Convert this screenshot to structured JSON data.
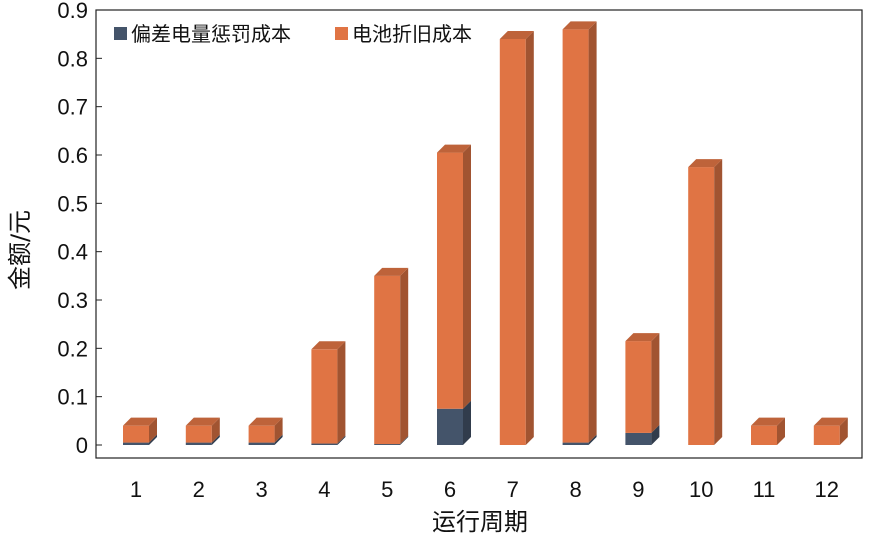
{
  "chart_data": {
    "type": "bar",
    "stacked": true,
    "categories": [
      "1",
      "2",
      "3",
      "4",
      "5",
      "6",
      "7",
      "8",
      "9",
      "10",
      "11",
      "12"
    ],
    "series": [
      {
        "name": "偏差电量惩罚成本",
        "color": "#44546A",
        "values": [
          0.005,
          0.005,
          0.005,
          0.003,
          0.002,
          0.075,
          0,
          0.005,
          0.025,
          0,
          0,
          0
        ]
      },
      {
        "name": "电池折旧成本",
        "color": "#E07444",
        "values": [
          0.035,
          0.035,
          0.035,
          0.195,
          0.348,
          0.53,
          0.84,
          0.855,
          0.19,
          0.575,
          0.04,
          0.04
        ]
      }
    ],
    "ylim": [
      0,
      0.9
    ],
    "yticks": [
      "0",
      "0.1",
      "0.2",
      "0.3",
      "0.4",
      "0.5",
      "0.6",
      "0.7",
      "0.8",
      "0.9"
    ],
    "xlabel": "运行周期",
    "ylabel": "金额/元",
    "legend_position": "top-left",
    "grid": false
  }
}
